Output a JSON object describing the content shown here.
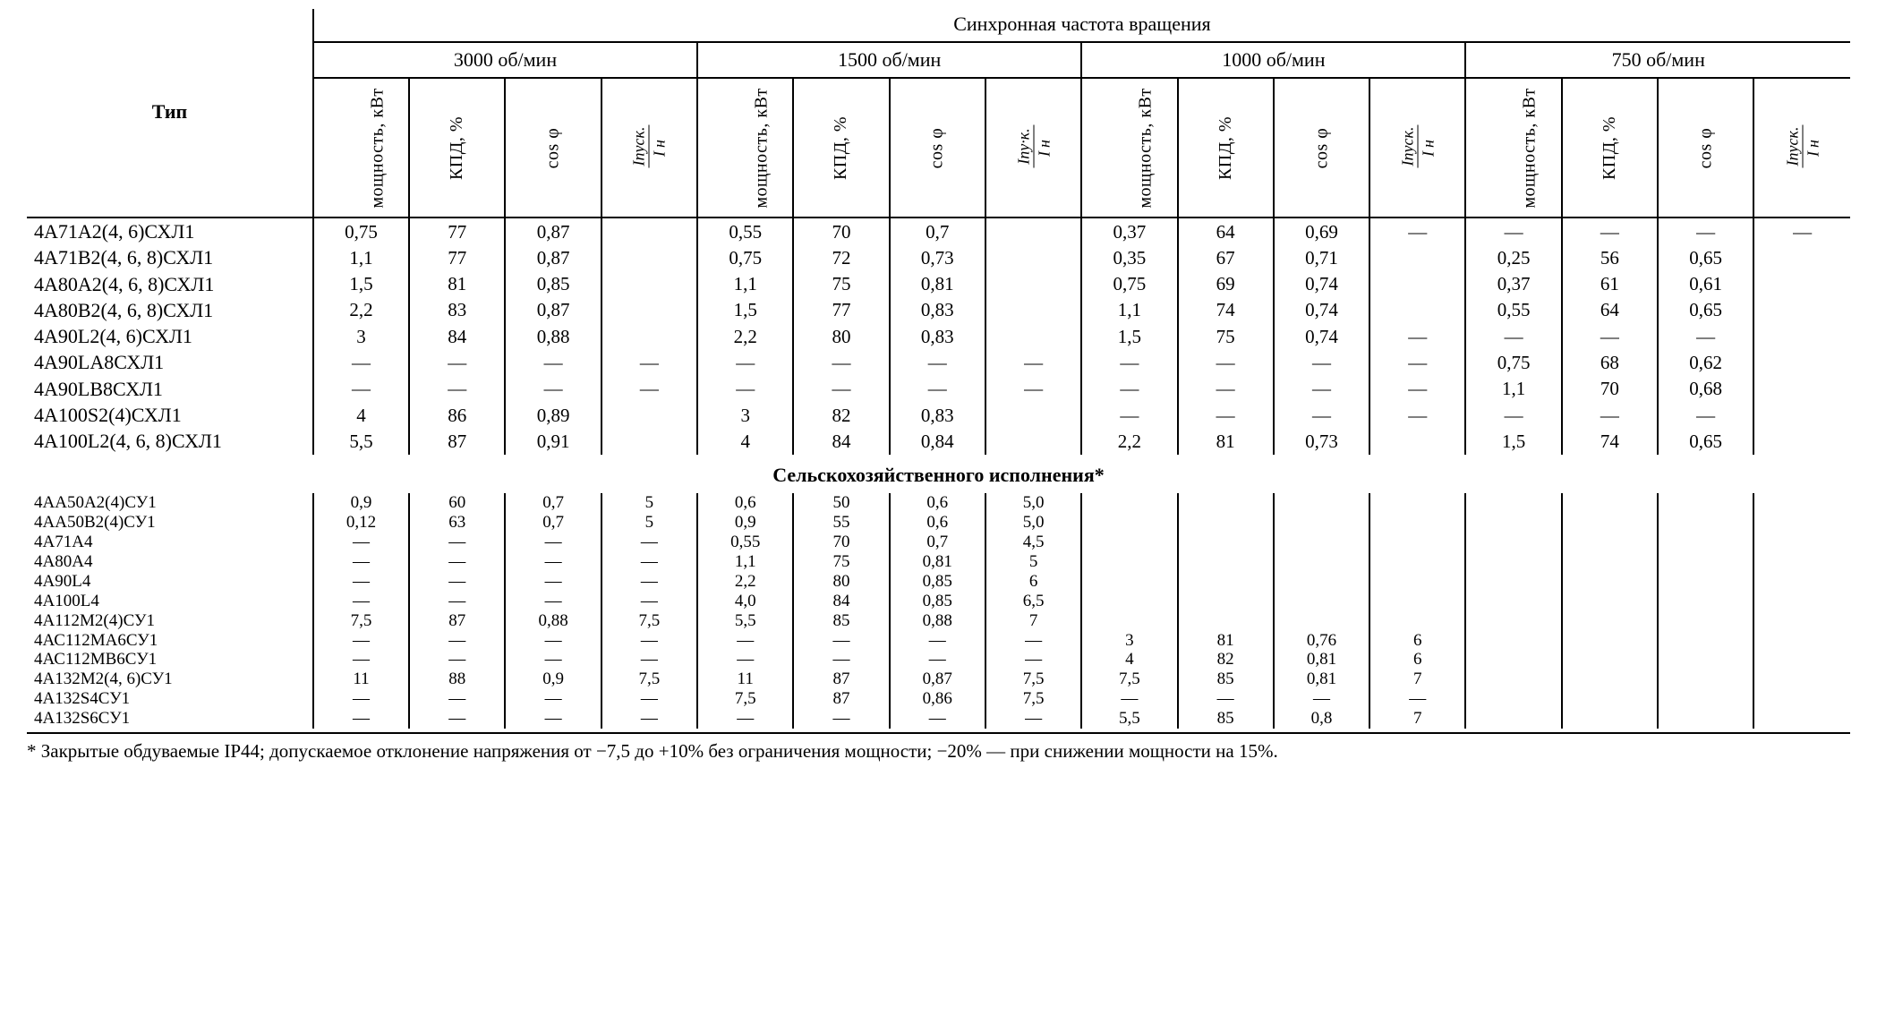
{
  "header": {
    "super_title": "Синхронная частота вращения",
    "type_label": "Тип",
    "groups": [
      "3000 об/мин",
      "1500 об/мин",
      "1000 об/мин",
      "750 об/мин"
    ],
    "sub_power": "мощность,\nкВт",
    "sub_kpd": "КПД, %",
    "sub_cos": "cos φ",
    "sub_ratio_num": "Iпуск.",
    "sub_ratio_den": "Iн",
    "sub_ratio_num_alt": "Iпу·к.",
    "section2_title": "Сельскохозяйственного исполнения*"
  },
  "rows1": [
    {
      "t": "4А71А2(4, 6)СХЛ1",
      "c": [
        "0,75",
        "77",
        "0,87",
        "",
        "0,55",
        "70",
        "0,7",
        "",
        "0,37",
        "64",
        "0,69",
        "—",
        "—",
        "—",
        "—",
        "—"
      ]
    },
    {
      "t": "4А71В2(4, 6, 8)СХЛ1",
      "c": [
        "1,1",
        "77",
        "0,87",
        "",
        "0,75",
        "72",
        "0,73",
        "",
        "0,35",
        "67",
        "0,71",
        "",
        "0,25",
        "56",
        "0,65",
        ""
      ]
    },
    {
      "t": "4А80А2(4, 6, 8)СХЛ1",
      "c": [
        "1,5",
        "81",
        "0,85",
        "",
        "1,1",
        "75",
        "0,81",
        "",
        "0,75",
        "69",
        "0,74",
        "",
        "0,37",
        "61",
        "0,61",
        ""
      ]
    },
    {
      "t": "4А80В2(4, 6, 8)СХЛ1",
      "c": [
        "2,2",
        "83",
        "0,87",
        "",
        "1,5",
        "77",
        "0,83",
        "",
        "1,1",
        "74",
        "0,74",
        "",
        "0,55",
        "64",
        "0,65",
        ""
      ]
    },
    {
      "t": "4А90L2(4, 6)СХЛ1",
      "c": [
        "3",
        "84",
        "0,88",
        "",
        "2,2",
        "80",
        "0,83",
        "",
        "1,5",
        "75",
        "0,74",
        "—",
        "—",
        "—",
        "—",
        ""
      ]
    },
    {
      "t": "4А90LА8СХЛ1",
      "c": [
        "—",
        "—",
        "—",
        "—",
        "—",
        "—",
        "—",
        "—",
        "—",
        "—",
        "—",
        "—",
        "0,75",
        "68",
        "0,62",
        ""
      ]
    },
    {
      "t": "4А90LВ8СХЛ1",
      "c": [
        "—",
        "—",
        "—",
        "—",
        "—",
        "—",
        "—",
        "—",
        "—",
        "—",
        "—",
        "—",
        "1,1",
        "70",
        "0,68",
        ""
      ]
    },
    {
      "t": "4А100S2(4)СХЛ1",
      "c": [
        "4",
        "86",
        "0,89",
        "",
        "3",
        "82",
        "0,83",
        "",
        "—",
        "—",
        "—",
        "—",
        "—",
        "—",
        "—",
        ""
      ]
    },
    {
      "t": "4А100L2(4, 6, 8)СХЛ1",
      "c": [
        "5,5",
        "87",
        "0,91",
        "",
        "4",
        "84",
        "0,84",
        "",
        "2,2",
        "81",
        "0,73",
        "",
        "1,5",
        "74",
        "0,65",
        ""
      ]
    }
  ],
  "rows2": [
    {
      "t": "4АА50А2(4)СУ1",
      "c": [
        "0,9",
        "60",
        "0,7",
        "5",
        "0,6",
        "50",
        "0,6",
        "5,0",
        "",
        "",
        "",
        "",
        "",
        "",
        "",
        ""
      ]
    },
    {
      "t": "4АА50В2(4)СУ1",
      "c": [
        "0,12",
        "63",
        "0,7",
        "5",
        "0,9",
        "55",
        "0,6",
        "5,0",
        "",
        "",
        "",
        "",
        "",
        "",
        "",
        ""
      ]
    },
    {
      "t": "4А71А4",
      "c": [
        "—",
        "—",
        "—",
        "—",
        "0,55",
        "70",
        "0,7",
        "4,5",
        "",
        "",
        "",
        "",
        "",
        "",
        "",
        ""
      ]
    },
    {
      "t": "4А80А4",
      "c": [
        "—",
        "—",
        "—",
        "—",
        "1,1",
        "75",
        "0,81",
        "5",
        "",
        "",
        "",
        "",
        "",
        "",
        "",
        ""
      ]
    },
    {
      "t": "4А90L4",
      "c": [
        "—",
        "—",
        "—",
        "—",
        "2,2",
        "80",
        "0,85",
        "6",
        "",
        "",
        "",
        "",
        "",
        "",
        "",
        ""
      ]
    },
    {
      "t": "4А100L4",
      "c": [
        "—",
        "—",
        "—",
        "—",
        "4,0",
        "84",
        "0,85",
        "6,5",
        "",
        "",
        "",
        "",
        "",
        "",
        "",
        ""
      ]
    },
    {
      "t": "4А112М2(4)СУ1",
      "c": [
        "7,5",
        "87",
        "0,88",
        "7,5",
        "5,5",
        "85",
        "0,88",
        "7",
        "",
        "",
        "",
        "",
        "",
        "",
        "",
        ""
      ]
    },
    {
      "t": "4АС112МА6СУ1",
      "c": [
        "—",
        "—",
        "—",
        "—",
        "—",
        "—",
        "—",
        "—",
        "3",
        "81",
        "0,76",
        "6",
        "",
        "",
        "",
        ""
      ]
    },
    {
      "t": "4АС112МВ6СУ1",
      "c": [
        "—",
        "—",
        "—",
        "—",
        "—",
        "—",
        "—",
        "—",
        "4",
        "82",
        "0,81",
        "6",
        "",
        "",
        "",
        ""
      ]
    },
    {
      "t": "4А132М2(4, 6)СУ1",
      "c": [
        "11",
        "88",
        "0,9",
        "7,5",
        "11",
        "87",
        "0,87",
        "7,5",
        "7,5",
        "85",
        "0,81",
        "7",
        "",
        "",
        "",
        ""
      ]
    },
    {
      "t": "4А132S4СУ1",
      "c": [
        "—",
        "—",
        "—",
        "—",
        "7,5",
        "87",
        "0,86",
        "7,5",
        "—",
        "—",
        "—",
        "—",
        "",
        "",
        "",
        ""
      ]
    },
    {
      "t": "4А132S6СУ1",
      "c": [
        "—",
        "—",
        "—",
        "—",
        "—",
        "—",
        "—",
        "—",
        "5,5",
        "85",
        "0,8",
        "7",
        "",
        "",
        "",
        ""
      ]
    }
  ],
  "footnote": "* Закрытые обдуваемые IP44; допускаемое отклонение напряжения от −7,5 до +10% без ограничения мощности; −20% — при снижении мощности на 15%."
}
